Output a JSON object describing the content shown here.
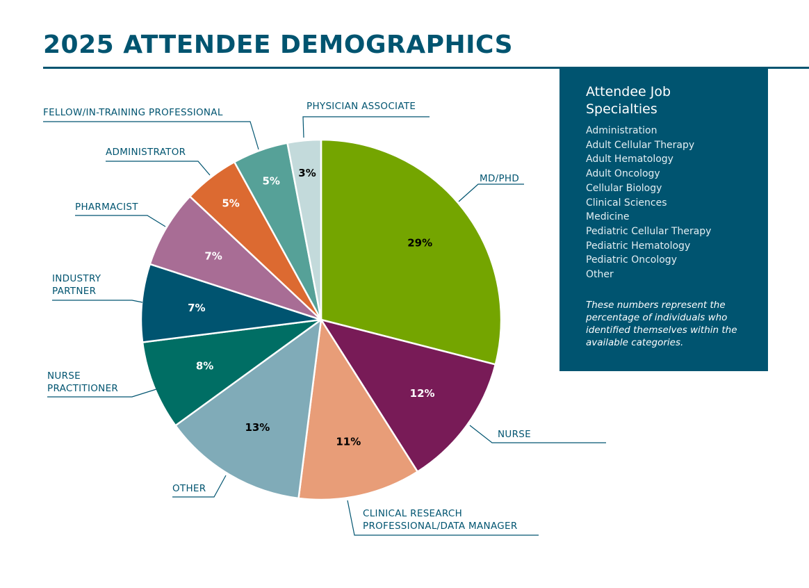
{
  "title": "2025 ATTENDEE DEMOGRAPHICS",
  "chart_data": {
    "type": "pie",
    "slices": [
      {
        "category": "MD/PHD",
        "value": 29,
        "value_label": "29%",
        "color": "#74A500",
        "label_color": "#000000"
      },
      {
        "category": "NURSE",
        "value": 12,
        "value_label": "12%",
        "color": "#781B57",
        "label_color": "#ffffff"
      },
      {
        "category": "CLINICAL RESEARCH PROFESSIONAL/DATA MANAGER",
        "category_lines": [
          "CLINICAL RESEARCH",
          "PROFESSIONAL/DATA MANAGER"
        ],
        "value": 11,
        "value_label": "11%",
        "color": "#E89D78",
        "label_color": "#000000"
      },
      {
        "category": "OTHER",
        "value": 13,
        "value_label": "13%",
        "color": "#80ABB8",
        "label_color": "#000000"
      },
      {
        "category": "NURSE PRACTITIONER",
        "category_lines": [
          "NURSE",
          "PRACTITIONER"
        ],
        "value": 8,
        "value_label": "8%",
        "color": "#006E64",
        "label_color": "#ffffff"
      },
      {
        "category": "INDUSTRY PARTNER",
        "category_lines": [
          "INDUSTRY",
          "PARTNER"
        ],
        "value": 7,
        "value_label": "7%",
        "color": "#005470",
        "label_color": "#ffffff"
      },
      {
        "category": "PHARMACIST",
        "value": 7,
        "value_label": "7%",
        "color": "#A86D95",
        "label_color": "#ffffff"
      },
      {
        "category": "ADMINISTRATOR",
        "value": 5,
        "value_label": "5%",
        "color": "#DC6A31",
        "label_color": "#ffffff"
      },
      {
        "category": "FELLOW/IN-TRAINING PROFESSIONAL",
        "value": 5,
        "value_label": "5%",
        "color": "#56A198",
        "label_color": "#ffffff"
      },
      {
        "category": "PHYSICIAN ASSOCIATE",
        "value": 3,
        "value_label": "3%",
        "color": "#C3DADB",
        "label_color": "#000000"
      }
    ]
  },
  "panel": {
    "title": "Attendee Job Specialties",
    "specialties": [
      "Administration",
      "Adult Cellular Therapy",
      "Adult Hematology",
      "Adult Oncology",
      "Cellular Biology",
      "Clinical Sciences",
      "Medicine",
      "Pediatric Cellular Therapy",
      "Pediatric Hematology",
      "Pediatric Oncology",
      "Other"
    ],
    "note": "These numbers represent the percentage of individuals who identified themselves within the available categories."
  }
}
